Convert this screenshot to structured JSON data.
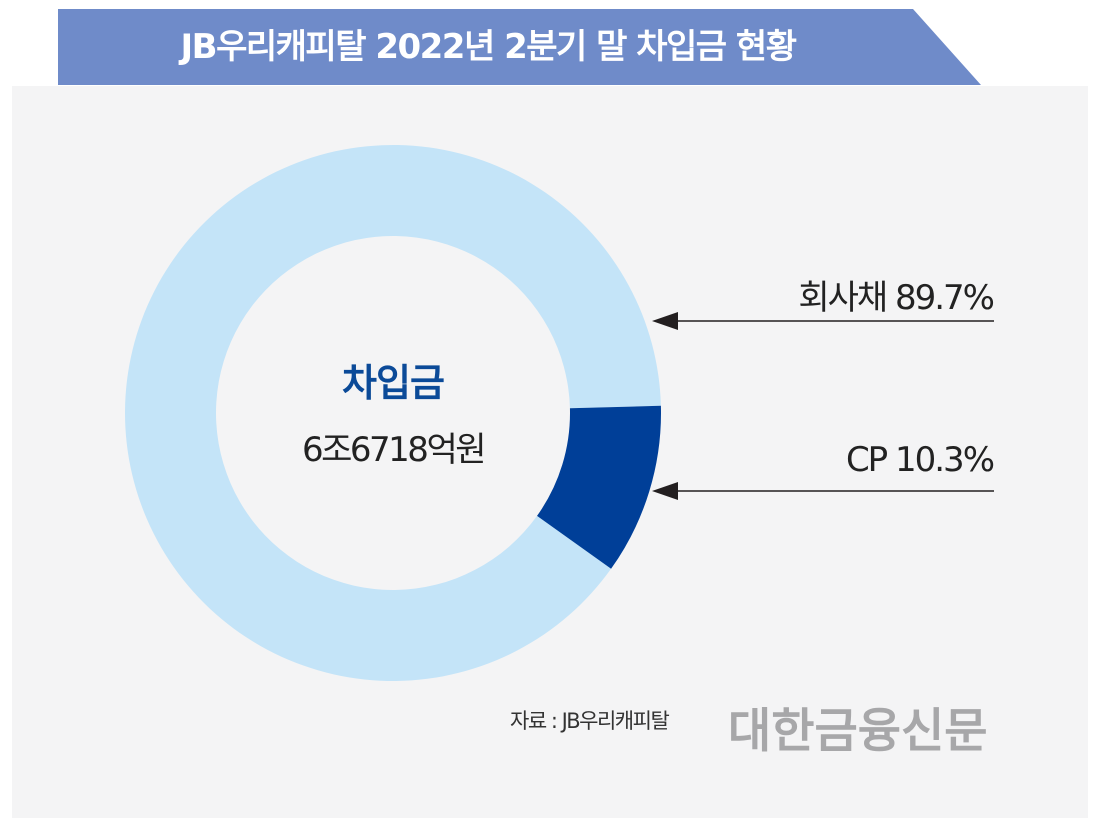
{
  "header": {
    "title": "JB우리캐피탈 2022년 2분기 말 차입금 현황"
  },
  "colors": {
    "banner": "#6f8bc9",
    "panel_background": "#f4f4f5",
    "major_slice": "#c4e4f8",
    "minor_slice": "#003f98",
    "center_label": "#0b4a98",
    "logo": "#a7a7a9"
  },
  "chart_data": {
    "type": "pie",
    "style": "donut",
    "title": "JB우리캐피탈 2022년 2분기 말 차입금 현황",
    "center": {
      "label": "차입금",
      "value": "6조6718억원"
    },
    "slices": [
      {
        "name": "회사채",
        "value": 89.7,
        "label": "회사채 89.7%",
        "color": "#c4e4f8"
      },
      {
        "name": "CP",
        "value": 10.3,
        "label": "CP 10.3%",
        "color": "#003f98"
      }
    ],
    "legend": "right"
  },
  "footer": {
    "source": "자료 : JB우리캐피탈",
    "logo": "대한금융신문"
  }
}
